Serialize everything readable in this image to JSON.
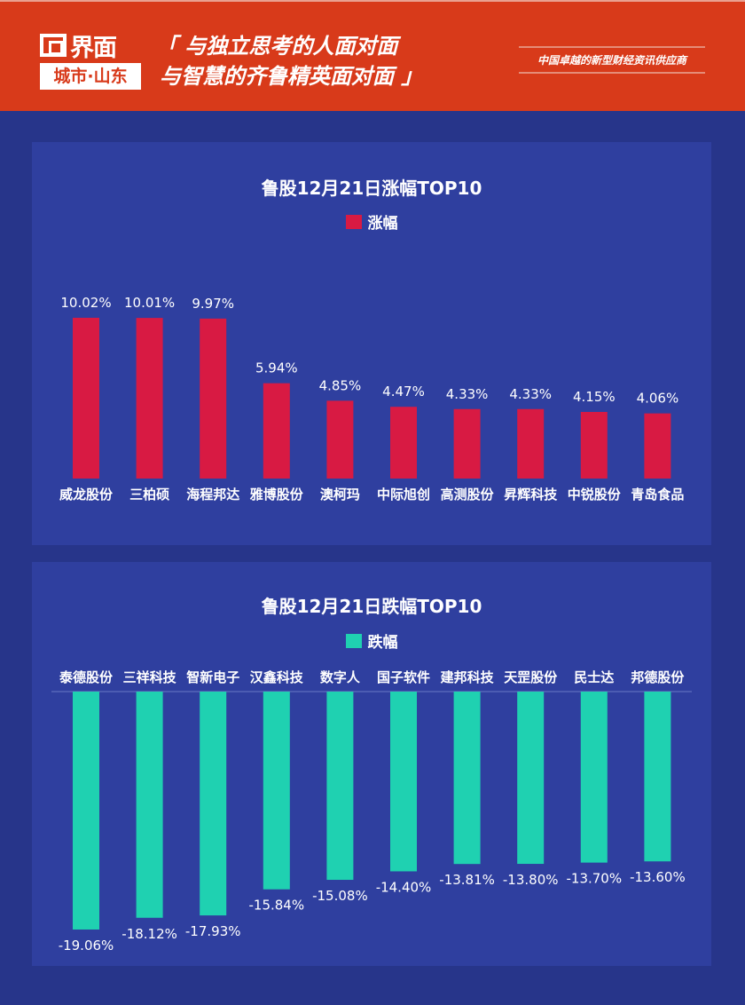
{
  "header": {
    "logo_name": "界面",
    "logo_city": "城市·山东",
    "slogan_line1": "「 与独立思考的人面对面",
    "slogan_line2": "与智慧的齐鲁精英面对面 」",
    "tagline": "中国卓越的新型财经资讯供应商"
  },
  "colors": {
    "header": "#d83a1a",
    "background": "#27358a",
    "panel": "#2f3f9f",
    "gain": "#d81a43",
    "loss": "#1fd1b1"
  },
  "chart_data": [
    {
      "type": "bar",
      "title": "鲁股12月21日涨幅TOP10",
      "legend": "涨幅",
      "legend_position": "top",
      "unit": "%",
      "categories": [
        "威龙股份",
        "三柏硕",
        "海程邦达",
        "雅博股份",
        "澳柯玛",
        "中际旭创",
        "高测股份",
        "昇辉科技",
        "中锐股份",
        "青岛食品"
      ],
      "values": [
        10.02,
        10.01,
        9.97,
        5.94,
        4.85,
        4.47,
        4.33,
        4.33,
        4.15,
        4.06
      ],
      "labels": [
        "10.02%",
        "10.01%",
        "9.97%",
        "5.94%",
        "4.85%",
        "4.47%",
        "4.33%",
        "4.33%",
        "4.15%",
        "4.06%"
      ]
    },
    {
      "type": "bar",
      "title": "鲁股12月21日跌幅TOP10",
      "legend": "跌幅",
      "legend_position": "top",
      "unit": "%",
      "categories": [
        "泰德股份",
        "三祥科技",
        "智新电子",
        "汉鑫科技",
        "数字人",
        "国子软件",
        "建邦科技",
        "天罡股份",
        "民士达",
        "邦德股份"
      ],
      "values": [
        -19.06,
        -18.12,
        -17.93,
        -15.84,
        -15.08,
        -14.4,
        -13.81,
        -13.8,
        -13.7,
        -13.6
      ],
      "labels": [
        "-19.06%",
        "-18.12%",
        "-17.93%",
        "-15.84%",
        "-15.08%",
        "-14.40%",
        "-13.81%",
        "-13.80%",
        "-13.70%",
        "-13.60%"
      ]
    }
  ]
}
